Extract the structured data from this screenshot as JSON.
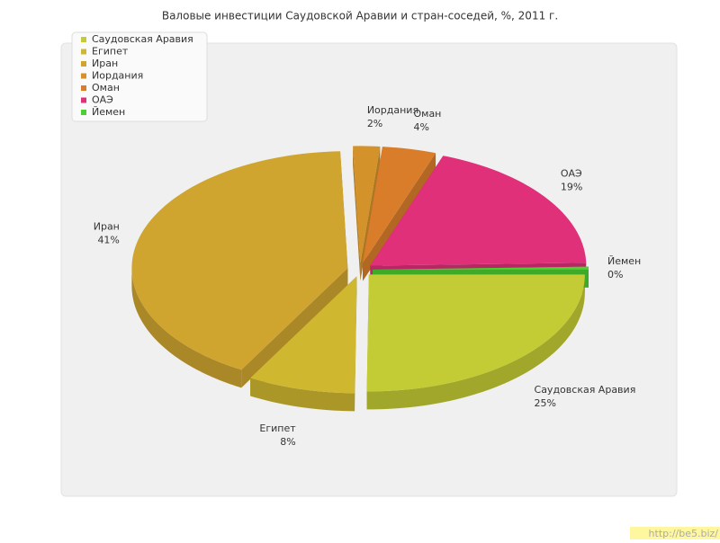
{
  "chart_data": {
    "type": "pie",
    "title": "Валовые инвестиции Саудовской Аравии и стран-соседей, %, 2011 г.",
    "categories": [
      "Саудовская Аравия",
      "Египет",
      "Иран",
      "Иордания",
      "Оман",
      "ОАЭ",
      "Йемен"
    ],
    "values": [
      25,
      8,
      41,
      2,
      4,
      19,
      0.4
    ],
    "value_labels": [
      "25%",
      "8%",
      "41%",
      "2%",
      "4%",
      "19%",
      "0%"
    ],
    "colors": [
      "#c3cc35",
      "#cfb82f",
      "#cfa52f",
      "#d4922b",
      "#d97d2a",
      "#e0307a",
      "#4ccf30"
    ],
    "legend": "top-left"
  },
  "watermark": "http://be5.biz/"
}
